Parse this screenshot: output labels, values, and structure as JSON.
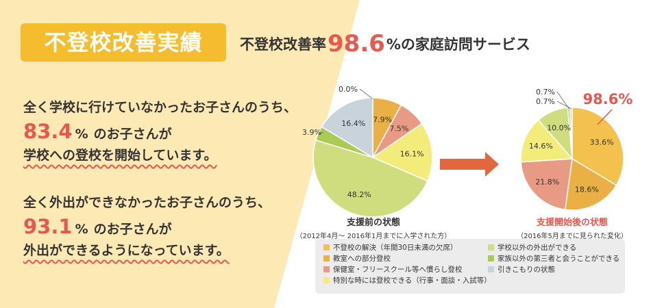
{
  "badge": {
    "text": "不登校改善実績"
  },
  "headline": {
    "before": "不登校改善率",
    "value": "98.6",
    "after": "%の家庭訪問サービス"
  },
  "stat1": {
    "line1": "全く学校に行けていなかったお子さんのうち、",
    "pct": "83.4",
    "unit": "%",
    "suffix": "のお子さんが",
    "line3": "学校への登校を開始しています。"
  },
  "stat2": {
    "line1": "全く外出ができなかったお子さんのうち、",
    "pct": "93.1",
    "unit": "%",
    "suffix": "のお子さんが",
    "line3": "外出ができるようになっています。"
  },
  "colors": {
    "badge": "#f5bd2e",
    "accent_red": "#e8574f",
    "arrow": "#e2663f",
    "left_bg": "#fde9b4"
  },
  "chart_data": [
    {
      "type": "pie",
      "title": "支援前の状態",
      "subtitle": "（2012年4月～ 2016年1月までに入学された方）",
      "series": [
        {
          "label": "0.0%",
          "value": 0.0,
          "color": "#f2c14e"
        },
        {
          "label": "7.9%",
          "value": 7.9,
          "color": "#eab046"
        },
        {
          "label": "7.5%",
          "value": 7.5,
          "color": "#e99a84"
        },
        {
          "label": "16.1%",
          "value": 16.1,
          "color": "#f4ec7a"
        },
        {
          "label": "48.2%",
          "value": 48.2,
          "color": "#d0dd7e"
        },
        {
          "label": "3.9%",
          "value": 3.9,
          "color": "#a9cc55"
        },
        {
          "label": "16.4%",
          "value": 16.4,
          "color": "#c8d3dc"
        }
      ]
    },
    {
      "type": "pie",
      "title": "支援開始後の状態",
      "subtitle": "（2016年5月までに見られた変化）",
      "highlight": "98.6%",
      "series": [
        {
          "label": "33.6%",
          "value": 33.6,
          "color": "#f2c14e"
        },
        {
          "label": "18.6%",
          "value": 18.6,
          "color": "#eab046"
        },
        {
          "label": "21.8%",
          "value": 21.8,
          "color": "#e99a84"
        },
        {
          "label": "14.6%",
          "value": 14.6,
          "color": "#f4ec7a"
        },
        {
          "label": "10.0%",
          "value": 10.0,
          "color": "#d0dd7e"
        },
        {
          "label": "0.7%",
          "value": 0.7,
          "color": "#a9cc55"
        },
        {
          "label": "0.7%",
          "value": 0.7,
          "color": "#c8d3dc"
        }
      ]
    }
  ],
  "legend": [
    {
      "label": "不登校の解決（年間30日未満の欠席）",
      "color": "#f2c14e"
    },
    {
      "label": "教室への部分登校",
      "color": "#eab046"
    },
    {
      "label": "保健室・フリースクール等へ慣らし登校",
      "color": "#e99a84"
    },
    {
      "label": "特別な時には登校できる（行事・面談・入試等）",
      "color": "#f4ec7a"
    },
    {
      "label": "学校以外の外出ができる",
      "color": "#d0dd7e"
    },
    {
      "label": "家族以外の第三者と会うことができる",
      "color": "#a9cc55"
    },
    {
      "label": "引きこもりの状態",
      "color": "#c8d3dc"
    }
  ]
}
